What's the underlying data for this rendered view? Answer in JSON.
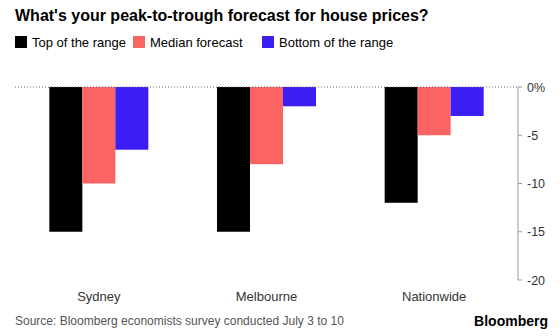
{
  "chart_data": {
    "type": "bar",
    "title": "What's your peak-to-trough forecast for house prices?",
    "categories": [
      "Sydney",
      "Melbourne",
      "Nationwide"
    ],
    "series": [
      {
        "name": "Top of the range",
        "color": "#000000",
        "values": [
          -15,
          -15,
          -12
        ]
      },
      {
        "name": "Median forecast",
        "color": "#fb6463",
        "values": [
          -10,
          -8,
          -5
        ]
      },
      {
        "name": "Bottom of the range",
        "color": "#3a1ef2",
        "values": [
          -6.5,
          -2,
          -3
        ]
      }
    ],
    "ylim": [
      -20,
      0
    ],
    "yticks": [
      {
        "value": 0,
        "label": "0%"
      },
      -5,
      -10,
      -15,
      -20
    ],
    "grid": false,
    "legend": "top",
    "annotations": [
      "Source: Bloomberg economists survey conducted July 3 to 10",
      "Bloomberg"
    ]
  }
}
